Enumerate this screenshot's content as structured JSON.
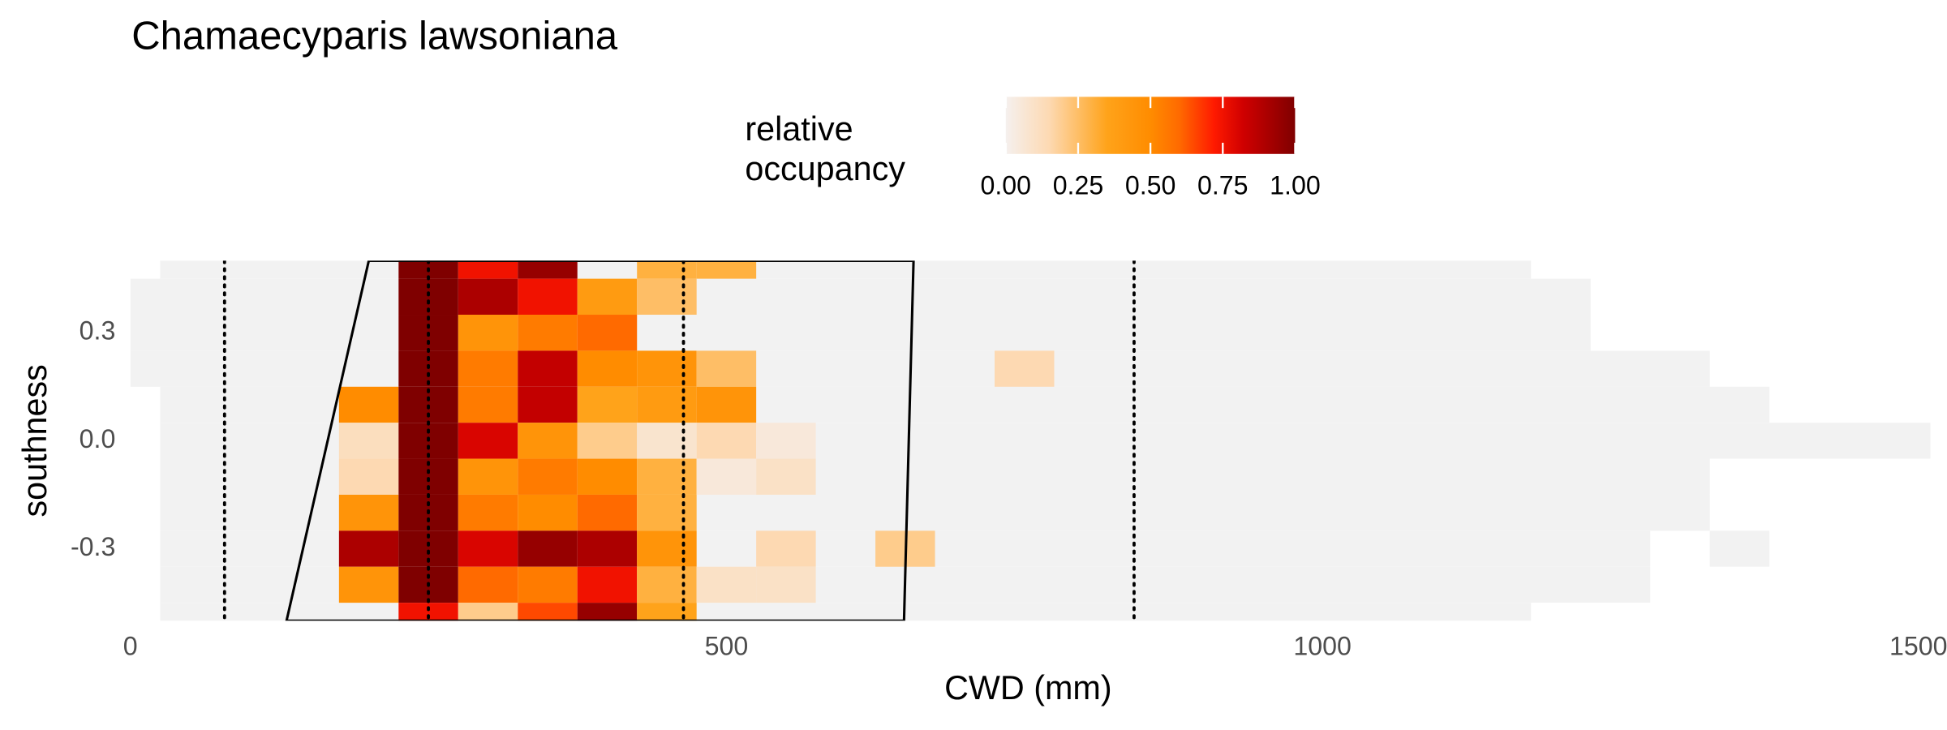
{
  "chart_data": {
    "type": "heatmap",
    "title": "Chamaecyparis lawsoniana",
    "x_label": "CWD (mm)",
    "y_label": "southness",
    "xlim": [
      0,
      1510
    ],
    "ylim": [
      -0.5,
      0.5
    ],
    "xticks": [
      0,
      500,
      1000,
      1500
    ],
    "yticks": [
      0.3,
      {
        "value": 0,
        "label": "0.0"
      },
      -0.3
    ],
    "cell_width": 50,
    "cell_height": 0.1,
    "background_color": "#f2f2f2",
    "background": [
      {
        "y": 0.5,
        "xmin": 25,
        "xmax": 1175
      },
      {
        "y": 0.4,
        "xmin": 0,
        "xmax": 1225
      },
      {
        "y": 0.3,
        "xmin": 0,
        "xmax": 1225
      },
      {
        "y": 0.2,
        "xmin": 0,
        "xmax": 1325
      },
      {
        "y": 0.1,
        "xmin": 25,
        "xmax": 1375
      },
      {
        "y": 0,
        "xmin": 25,
        "xmax": 1510
      },
      {
        "y": -0.1,
        "xmin": 25,
        "xmax": 1325
      },
      {
        "y": -0.2,
        "xmin": 25,
        "xmax": 1325
      },
      {
        "y": -0.3,
        "xmin": 25,
        "xmax": 1275
      },
      {
        "y": -0.3,
        "xmin": 1325,
        "xmax": 1375
      },
      {
        "y": -0.4,
        "xmin": 25,
        "xmax": 1275
      },
      {
        "y": -0.5,
        "xmin": 25,
        "xmax": 1175
      }
    ],
    "cells": [
      {
        "x": 250,
        "y": 0.5,
        "value": 1
      },
      {
        "x": 300,
        "y": 0.5,
        "value": 0.75
      },
      {
        "x": 350,
        "y": 0.5,
        "value": 0.95
      },
      {
        "x": 450,
        "y": 0.5,
        "value": 0.3
      },
      {
        "x": 500,
        "y": 0.5,
        "value": 0.3
      },
      {
        "x": 250,
        "y": 0.4,
        "value": 1
      },
      {
        "x": 300,
        "y": 0.4,
        "value": 0.9
      },
      {
        "x": 350,
        "y": 0.4,
        "value": 0.75
      },
      {
        "x": 400,
        "y": 0.4,
        "value": 0.4
      },
      {
        "x": 450,
        "y": 0.4,
        "value": 0.25
      },
      {
        "x": 250,
        "y": 0.3,
        "value": 1
      },
      {
        "x": 300,
        "y": 0.3,
        "value": 0.45
      },
      {
        "x": 350,
        "y": 0.3,
        "value": 0.55
      },
      {
        "x": 400,
        "y": 0.3,
        "value": 0.6
      },
      {
        "x": 250,
        "y": 0.2,
        "value": 1
      },
      {
        "x": 300,
        "y": 0.2,
        "value": 0.55
      },
      {
        "x": 350,
        "y": 0.2,
        "value": 0.85
      },
      {
        "x": 400,
        "y": 0.2,
        "value": 0.5
      },
      {
        "x": 450,
        "y": 0.2,
        "value": 0.45
      },
      {
        "x": 500,
        "y": 0.2,
        "value": 0.25
      },
      {
        "x": 750,
        "y": 0.2,
        "value": 0.15
      },
      {
        "x": 200,
        "y": 0.1,
        "value": 0.5
      },
      {
        "x": 250,
        "y": 0.1,
        "value": 1
      },
      {
        "x": 300,
        "y": 0.1,
        "value": 0.55
      },
      {
        "x": 350,
        "y": 0.1,
        "value": 0.85
      },
      {
        "x": 400,
        "y": 0.1,
        "value": 0.35
      },
      {
        "x": 450,
        "y": 0.1,
        "value": 0.4
      },
      {
        "x": 500,
        "y": 0.1,
        "value": 0.45
      },
      {
        "x": 200,
        "y": 0,
        "value": 0.12
      },
      {
        "x": 250,
        "y": 0,
        "value": 1
      },
      {
        "x": 300,
        "y": 0,
        "value": 0.8
      },
      {
        "x": 350,
        "y": 0,
        "value": 0.45
      },
      {
        "x": 400,
        "y": 0,
        "value": 0.2
      },
      {
        "x": 450,
        "y": 0,
        "value": 0.08
      },
      {
        "x": 500,
        "y": 0,
        "value": 0.15
      },
      {
        "x": 550,
        "y": 0,
        "value": 0.05
      },
      {
        "x": 200,
        "y": -0.1,
        "value": 0.15
      },
      {
        "x": 250,
        "y": -0.1,
        "value": 1
      },
      {
        "x": 300,
        "y": -0.1,
        "value": 0.45
      },
      {
        "x": 350,
        "y": -0.1,
        "value": 0.55
      },
      {
        "x": 400,
        "y": -0.1,
        "value": 0.5
      },
      {
        "x": 450,
        "y": -0.1,
        "value": 0.3
      },
      {
        "x": 500,
        "y": -0.1,
        "value": 0.05
      },
      {
        "x": 550,
        "y": -0.1,
        "value": 0.1
      },
      {
        "x": 200,
        "y": -0.2,
        "value": 0.45
      },
      {
        "x": 250,
        "y": -0.2,
        "value": 1
      },
      {
        "x": 300,
        "y": -0.2,
        "value": 0.55
      },
      {
        "x": 350,
        "y": -0.2,
        "value": 0.5
      },
      {
        "x": 400,
        "y": -0.2,
        "value": 0.6
      },
      {
        "x": 450,
        "y": -0.2,
        "value": 0.3
      },
      {
        "x": 200,
        "y": -0.3,
        "value": 0.9
      },
      {
        "x": 250,
        "y": -0.3,
        "value": 1
      },
      {
        "x": 300,
        "y": -0.3,
        "value": 0.8
      },
      {
        "x": 350,
        "y": -0.3,
        "value": 0.95
      },
      {
        "x": 400,
        "y": -0.3,
        "value": 0.9
      },
      {
        "x": 450,
        "y": -0.3,
        "value": 0.45
      },
      {
        "x": 550,
        "y": -0.3,
        "value": 0.15
      },
      {
        "x": 650,
        "y": -0.3,
        "value": 0.2
      },
      {
        "x": 200,
        "y": -0.4,
        "value": 0.45
      },
      {
        "x": 250,
        "y": -0.4,
        "value": 1
      },
      {
        "x": 300,
        "y": -0.4,
        "value": 0.6
      },
      {
        "x": 350,
        "y": -0.4,
        "value": 0.55
      },
      {
        "x": 400,
        "y": -0.4,
        "value": 0.75
      },
      {
        "x": 450,
        "y": -0.4,
        "value": 0.3
      },
      {
        "x": 500,
        "y": -0.4,
        "value": 0.1
      },
      {
        "x": 550,
        "y": -0.4,
        "value": 0.1
      },
      {
        "x": 250,
        "y": -0.5,
        "value": 0.75
      },
      {
        "x": 300,
        "y": -0.5,
        "value": 0.2
      },
      {
        "x": 350,
        "y": -0.5,
        "value": 0.65
      },
      {
        "x": 400,
        "y": -0.5,
        "value": 0.95
      },
      {
        "x": 450,
        "y": -0.5,
        "value": 0.35
      }
    ],
    "outline": {
      "x": [
        200,
        657,
        649,
        131
      ],
      "y": [
        0.5,
        0.5,
        -0.5,
        -0.5
      ]
    },
    "vlines": [
      79,
      250,
      464,
      842
    ],
    "colorbar": {
      "title": "relative occupancy",
      "lim": [
        0,
        1
      ],
      "ticks": [
        {
          "value": 0,
          "label": "0.00"
        },
        {
          "value": 0.25,
          "label": "0.25"
        },
        {
          "value": 0.5,
          "label": "0.50"
        },
        {
          "value": 0.75,
          "label": "0.75"
        },
        {
          "value": 1,
          "label": "1.00"
        }
      ],
      "colorscale": [
        [
          0,
          "#f5f0ee"
        ],
        [
          0.15,
          "#fdd9b2"
        ],
        [
          0.35,
          "#ffa31a"
        ],
        [
          0.5,
          "#ff8c00"
        ],
        [
          0.6,
          "#ff6a00"
        ],
        [
          0.72,
          "#ff1a00"
        ],
        [
          0.82,
          "#d00000"
        ],
        [
          1,
          "#7f0000"
        ]
      ]
    }
  }
}
